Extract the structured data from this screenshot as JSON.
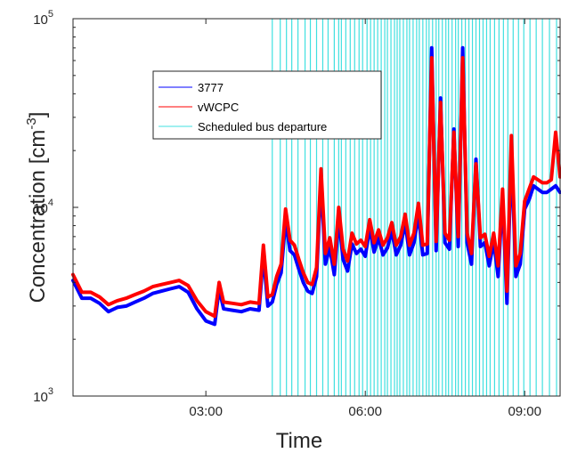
{
  "chart_data": {
    "type": "line",
    "xlabel": "Time",
    "ylabel": "Concentration [cm",
    "ylabel_unit_exp": "-3",
    "ylabel_close": "]",
    "y_scale": "log",
    "ylim": [
      1000,
      100000
    ],
    "y_ticks": [
      {
        "value": 1000,
        "base": "10",
        "exp": "3"
      },
      {
        "value": 10000,
        "base": "10",
        "exp": "4"
      },
      {
        "value": 100000,
        "base": "10",
        "exp": "5"
      }
    ],
    "xlim": [
      "00:30",
      "09:40"
    ],
    "x_ticks": [
      "03:00",
      "06:00",
      "09:00"
    ],
    "grid": false,
    "legend": {
      "placement": "upper-left-center",
      "entries": [
        "3777",
        "vWCPC",
        "Scheduled bus departure"
      ]
    },
    "colors": {
      "3777": "#0000ff",
      "vWCPC": "#ff0000",
      "bus": "#40e0e0"
    },
    "series": [
      {
        "name": "3777",
        "x": [
          "00:30",
          "00:40",
          "00:50",
          "01:00",
          "01:10",
          "01:20",
          "01:30",
          "01:40",
          "01:50",
          "02:00",
          "02:10",
          "02:20",
          "02:30",
          "02:40",
          "02:50",
          "03:00",
          "03:10",
          "03:15",
          "03:20",
          "03:30",
          "03:40",
          "03:50",
          "04:00",
          "04:05",
          "04:10",
          "04:15",
          "04:20",
          "04:25",
          "04:30",
          "04:35",
          "04:40",
          "04:45",
          "04:50",
          "04:55",
          "05:00",
          "05:05",
          "05:10",
          "05:15",
          "05:20",
          "05:25",
          "05:30",
          "05:35",
          "05:40",
          "05:45",
          "05:50",
          "05:55",
          "06:00",
          "06:05",
          "06:10",
          "06:15",
          "06:20",
          "06:25",
          "06:30",
          "06:35",
          "06:40",
          "06:45",
          "06:50",
          "06:55",
          "07:00",
          "07:05",
          "07:10",
          "07:15",
          "07:20",
          "07:25",
          "07:30",
          "07:35",
          "07:40",
          "07:45",
          "07:50",
          "07:55",
          "08:00",
          "08:05",
          "08:10",
          "08:15",
          "08:20",
          "08:25",
          "08:30",
          "08:35",
          "08:40",
          "08:45",
          "08:50",
          "08:55",
          "09:00",
          "09:05",
          "09:10",
          "09:15",
          "09:20",
          "09:25",
          "09:30",
          "09:35",
          "09:40"
        ],
        "values": [
          4100,
          3300,
          3300,
          3100,
          2800,
          2950,
          3000,
          3150,
          3300,
          3500,
          3600,
          3700,
          3800,
          3550,
          2900,
          2500,
          2400,
          3700,
          2900,
          2850,
          2800,
          2900,
          2850,
          5600,
          3000,
          3150,
          3900,
          4500,
          8500,
          5900,
          5600,
          4700,
          4000,
          3600,
          3500,
          4300,
          14000,
          5000,
          6100,
          4400,
          8800,
          5300,
          4600,
          6400,
          5700,
          6000,
          5500,
          7800,
          5800,
          6900,
          5600,
          6100,
          7500,
          5600,
          6300,
          8300,
          5600,
          6500,
          9200,
          5600,
          5700,
          70000,
          5900,
          38000,
          6500,
          6000,
          26000,
          6200,
          70000,
          6500,
          5000,
          18000,
          6200,
          6500,
          4900,
          6600,
          4300,
          11500,
          3100,
          20000,
          4300,
          5000,
          9800,
          11000,
          13000,
          12500,
          12000,
          12000,
          12500,
          13000,
          12000
        ]
      },
      {
        "name": "vWCPC",
        "x": [
          "00:30",
          "00:40",
          "00:50",
          "01:00",
          "01:10",
          "01:20",
          "01:30",
          "01:40",
          "01:50",
          "02:00",
          "02:10",
          "02:20",
          "02:30",
          "02:40",
          "02:50",
          "03:00",
          "03:10",
          "03:15",
          "03:20",
          "03:30",
          "03:40",
          "03:50",
          "04:00",
          "04:05",
          "04:10",
          "04:15",
          "04:20",
          "04:25",
          "04:30",
          "04:35",
          "04:40",
          "04:45",
          "04:50",
          "04:55",
          "05:00",
          "05:05",
          "05:10",
          "05:15",
          "05:20",
          "05:25",
          "05:30",
          "05:35",
          "05:40",
          "05:45",
          "05:50",
          "05:55",
          "06:00",
          "06:05",
          "06:10",
          "06:15",
          "06:20",
          "06:25",
          "06:30",
          "06:35",
          "06:40",
          "06:45",
          "06:50",
          "06:55",
          "07:00",
          "07:05",
          "07:10",
          "07:15",
          "07:20",
          "07:25",
          "07:30",
          "07:35",
          "07:40",
          "07:45",
          "07:50",
          "07:55",
          "08:00",
          "08:05",
          "08:10",
          "08:15",
          "08:20",
          "08:25",
          "08:30",
          "08:35",
          "08:40",
          "08:45",
          "08:50",
          "08:55",
          "09:00",
          "09:05",
          "09:10",
          "09:15",
          "09:20",
          "09:25",
          "09:30",
          "09:35",
          "09:40"
        ],
        "values": [
          4400,
          3550,
          3550,
          3350,
          3050,
          3200,
          3300,
          3450,
          3600,
          3800,
          3900,
          4000,
          4100,
          3850,
          3200,
          2800,
          2650,
          4000,
          3150,
          3100,
          3050,
          3150,
          3100,
          6300,
          3350,
          3450,
          4300,
          5000,
          9800,
          6700,
          6300,
          5300,
          4500,
          4000,
          3900,
          4800,
          16000,
          5700,
          6900,
          5000,
          10000,
          6000,
          5200,
          7300,
          6400,
          6700,
          6200,
          8600,
          6500,
          7600,
          6300,
          6900,
          8300,
          6300,
          7000,
          9200,
          6300,
          7300,
          10500,
          6300,
          6400,
          62000,
          6600,
          36000,
          7300,
          6700,
          25000,
          7000,
          62000,
          7300,
          5700,
          17000,
          6900,
          7200,
          5500,
          7300,
          4900,
          12500,
          3600,
          24000,
          4900,
          5700,
          10800,
          12500,
          14500,
          14000,
          13500,
          13500,
          14000,
          25000,
          14500
        ]
      }
    ],
    "bus_departures": [
      "04:15",
      "04:24",
      "04:31",
      "04:37",
      "04:44",
      "04:52",
      "04:58",
      "05:05",
      "05:12",
      "05:18",
      "05:25",
      "05:30",
      "05:33",
      "05:38",
      "05:43",
      "05:48",
      "05:53",
      "05:57",
      "06:02",
      "06:06",
      "06:10",
      "06:14",
      "06:18",
      "06:22",
      "06:25",
      "06:29",
      "06:33",
      "06:36",
      "06:39",
      "06:43",
      "06:47",
      "06:50",
      "06:54",
      "06:58",
      "07:01",
      "07:05",
      "07:09",
      "07:12",
      "07:16",
      "07:20",
      "07:23",
      "07:27",
      "07:31",
      "07:34",
      "07:38",
      "07:42",
      "07:45",
      "07:49",
      "07:53",
      "07:57",
      "08:01",
      "08:05",
      "08:09",
      "08:13",
      "08:17",
      "08:21",
      "08:26",
      "08:31",
      "08:36",
      "08:41",
      "08:47",
      "08:53",
      "08:59",
      "09:06",
      "09:13",
      "09:20",
      "09:28",
      "09:36"
    ]
  }
}
